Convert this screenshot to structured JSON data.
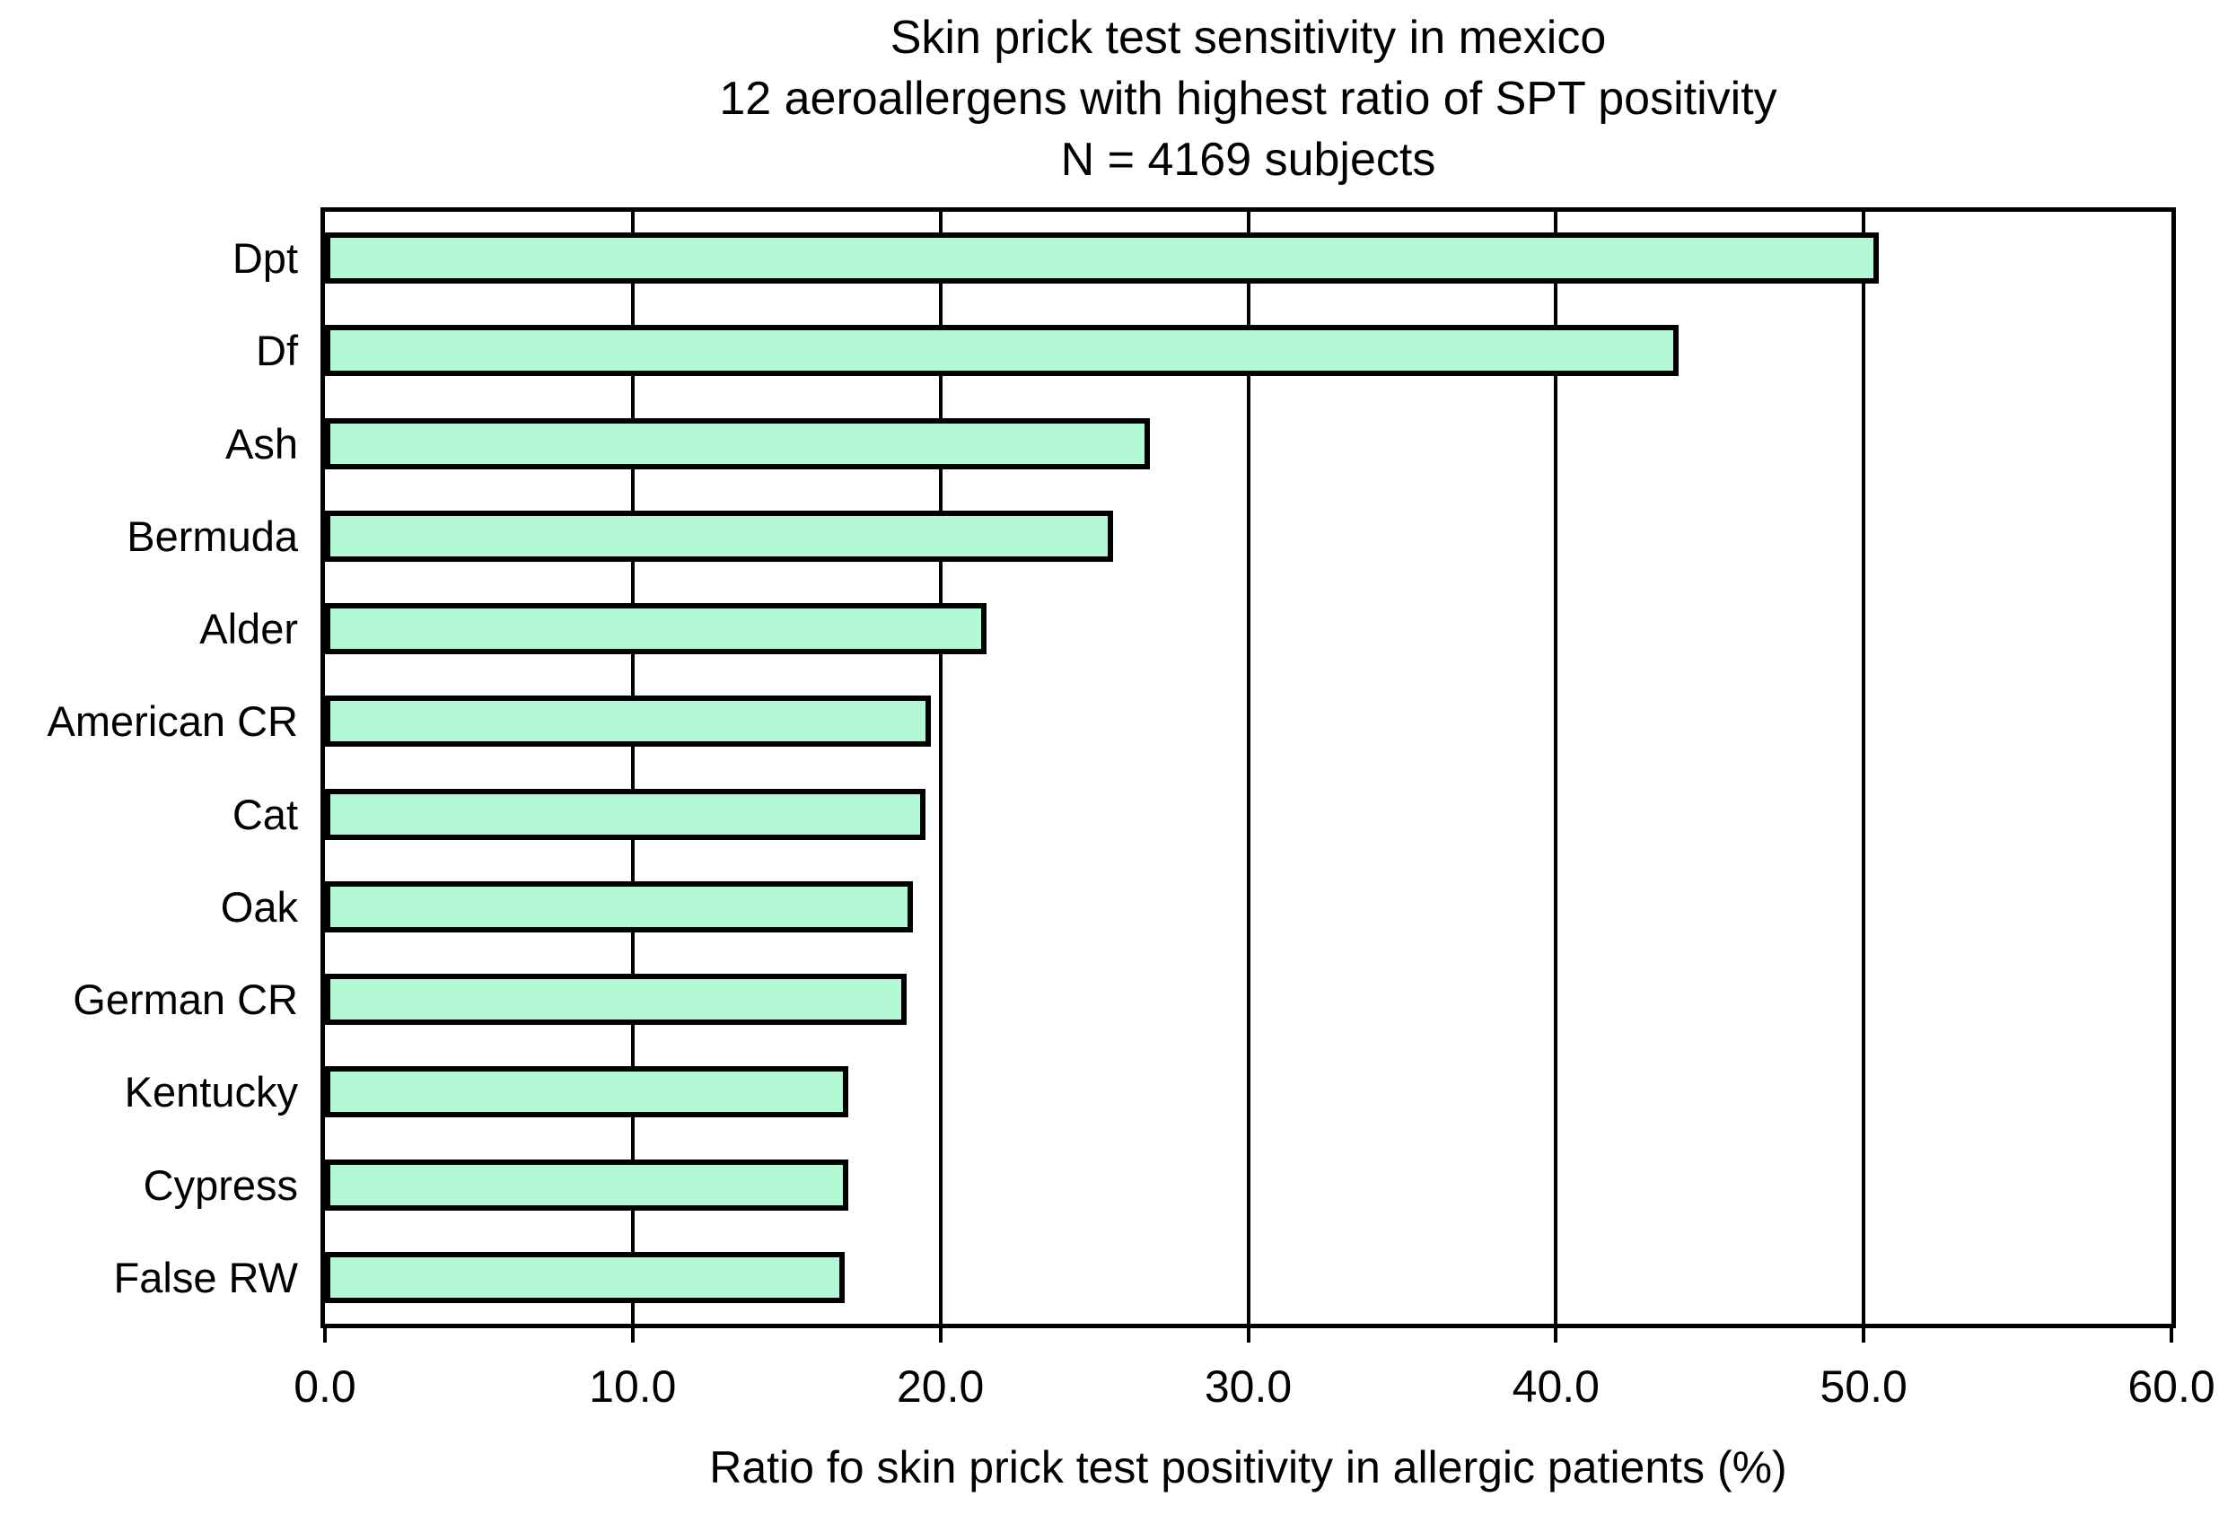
{
  "title_lines": [
    "Skin prick test sensitivity in mexico",
    "12 aeroallergens with highest ratio of SPT positivity",
    "N = 4169 subjects"
  ],
  "chart_data": {
    "type": "bar",
    "orientation": "horizontal",
    "title": "Skin prick test sensitivity in mexico — 12 aeroallergens with highest ratio of SPT positivity — N = 4169 subjects",
    "categories": [
      "Dpt",
      "Df",
      "Ash",
      "Bermuda",
      "Alder",
      "American CR",
      "Cat",
      "Oak",
      "German CR",
      "Kentucky",
      "Cypress",
      "False RW"
    ],
    "values": [
      50.5,
      44.0,
      26.8,
      25.6,
      21.5,
      19.7,
      19.5,
      19.1,
      18.9,
      17.0,
      17.0,
      16.9
    ],
    "xlabel": "Ratio fo skin prick test positivity in allergic patients (%)",
    "ylabel": "",
    "xlim": [
      0,
      60
    ],
    "x_ticks": [
      0,
      10,
      20,
      30,
      40,
      50,
      60
    ],
    "x_tick_labels": [
      "0.0",
      "10.0",
      "20.0",
      "30.0",
      "40.0",
      "50.0",
      "60.0"
    ],
    "grid": true,
    "legend": false,
    "bar_fill_color": "#b3f9d6",
    "bar_border_color": "#000000",
    "axis_color": "#000000"
  }
}
